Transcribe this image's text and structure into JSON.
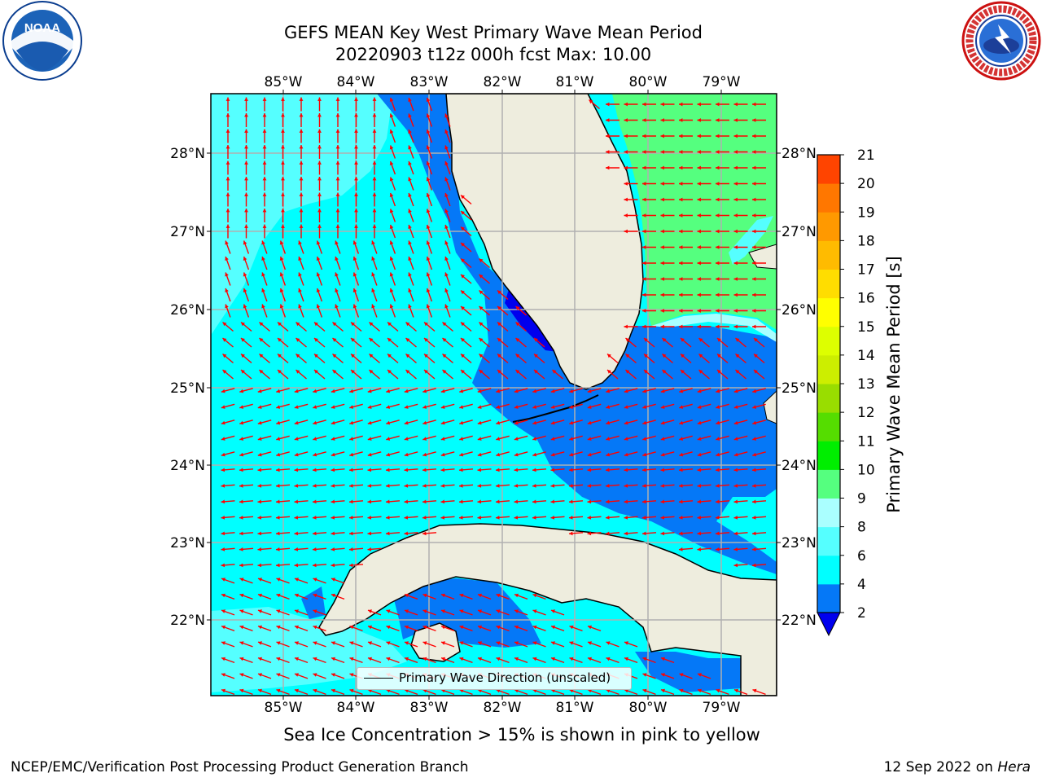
{
  "title": {
    "line1": "GEFS MEAN Key West Primary Wave Mean Period",
    "line2": "20220903 t12z 000h fcst   Max: 10.00"
  },
  "logos": {
    "left": "noaa-logo",
    "right": "nws-logo",
    "left_text": "NOAA",
    "left_ring_text": "NATIONAL OCEANIC AND ATMOSPHERIC ADMINISTRATION · U.S. DEPARTMENT OF COMMERCE",
    "right_ring_text": "NATIONAL WEATHER SERVICE"
  },
  "map": {
    "lon_labels": [
      "85°W",
      "84°W",
      "83°W",
      "82°W",
      "81°W",
      "80°W",
      "79°W"
    ],
    "lat_labels": [
      "28°N",
      "27°N",
      "26°N",
      "25°N",
      "24°N",
      "23°N",
      "22°N"
    ],
    "colors": {
      "land": "#eeedde",
      "band_2_4": "#0578f7",
      "band_4_6": "#00ffff",
      "band_6_8": "#55ffff",
      "band_9_10": "#55ff7f",
      "deep_blue": "#0000ee",
      "arrow": "#ff0000"
    }
  },
  "colorbar": {
    "label": "Primary Wave Mean Period [s]",
    "ticks": [
      "2",
      "4",
      "6",
      "8",
      "9",
      "10",
      "11",
      "12",
      "13",
      "14",
      "15",
      "16",
      "17",
      "18",
      "19",
      "20",
      "21"
    ],
    "colors": [
      "#0578f7",
      "#00ffff",
      "#55ffff",
      "#aaffff",
      "#55ff7f",
      "#00ee00",
      "#55dd00",
      "#99dd00",
      "#ccee00",
      "#ddff00",
      "#ffff00",
      "#ffdd00",
      "#ffbb00",
      "#ff9900",
      "#ff7700",
      "#ff4400",
      "#ff0000"
    ]
  },
  "legend": {
    "label": "Primary Wave Direction (unscaled)"
  },
  "ice_note": "Sea Ice Concentration > 15% is shown in pink to yellow",
  "footer": {
    "left": "NCEP/EMC/Verification Post Processing Product Generation Branch",
    "right_date": "12 Sep 2022 on ",
    "right_host": "Hera"
  }
}
